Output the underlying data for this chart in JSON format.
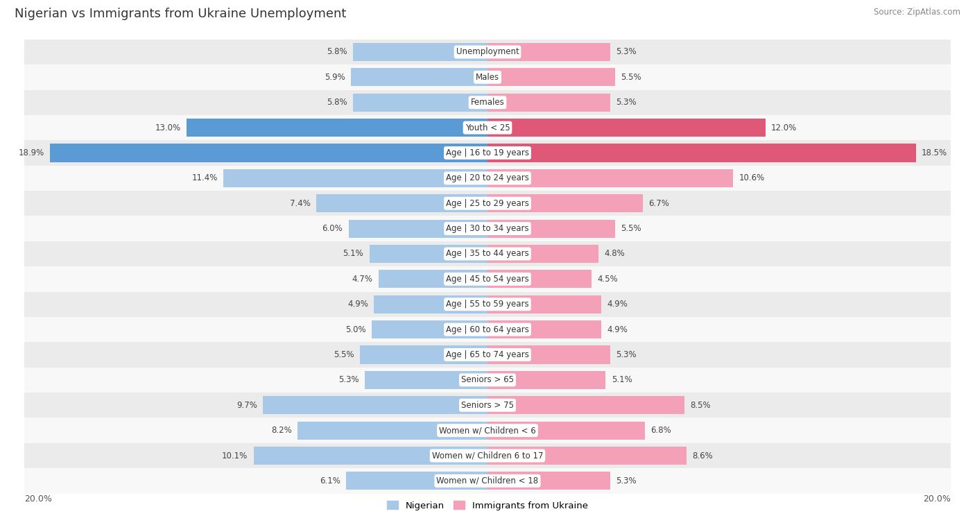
{
  "title": "Nigerian vs Immigrants from Ukraine Unemployment",
  "source": "Source: ZipAtlas.com",
  "categories": [
    "Unemployment",
    "Males",
    "Females",
    "Youth < 25",
    "Age | 16 to 19 years",
    "Age | 20 to 24 years",
    "Age | 25 to 29 years",
    "Age | 30 to 34 years",
    "Age | 35 to 44 years",
    "Age | 45 to 54 years",
    "Age | 55 to 59 years",
    "Age | 60 to 64 years",
    "Age | 65 to 74 years",
    "Seniors > 65",
    "Seniors > 75",
    "Women w/ Children < 6",
    "Women w/ Children 6 to 17",
    "Women w/ Children < 18"
  ],
  "nigerian": [
    5.8,
    5.9,
    5.8,
    13.0,
    18.9,
    11.4,
    7.4,
    6.0,
    5.1,
    4.7,
    4.9,
    5.0,
    5.5,
    5.3,
    9.7,
    8.2,
    10.1,
    6.1
  ],
  "ukraine": [
    5.3,
    5.5,
    5.3,
    12.0,
    18.5,
    10.6,
    6.7,
    5.5,
    4.8,
    4.5,
    4.9,
    4.9,
    5.3,
    5.1,
    8.5,
    6.8,
    8.6,
    5.3
  ],
  "nigerian_color": "#a8c8e8",
  "ukraine_color": "#f4a0b8",
  "nigerian_highlight_color": "#5b9bd5",
  "ukraine_highlight_color": "#e05878",
  "row_bg_light": "#ebebeb",
  "row_bg_white": "#f8f8f8",
  "axis_limit": 20.0,
  "legend_nigerian": "Nigerian",
  "legend_ukraine": "Immigrants from Ukraine",
  "highlight_rows": [
    3,
    4
  ],
  "bar_height": 0.72
}
